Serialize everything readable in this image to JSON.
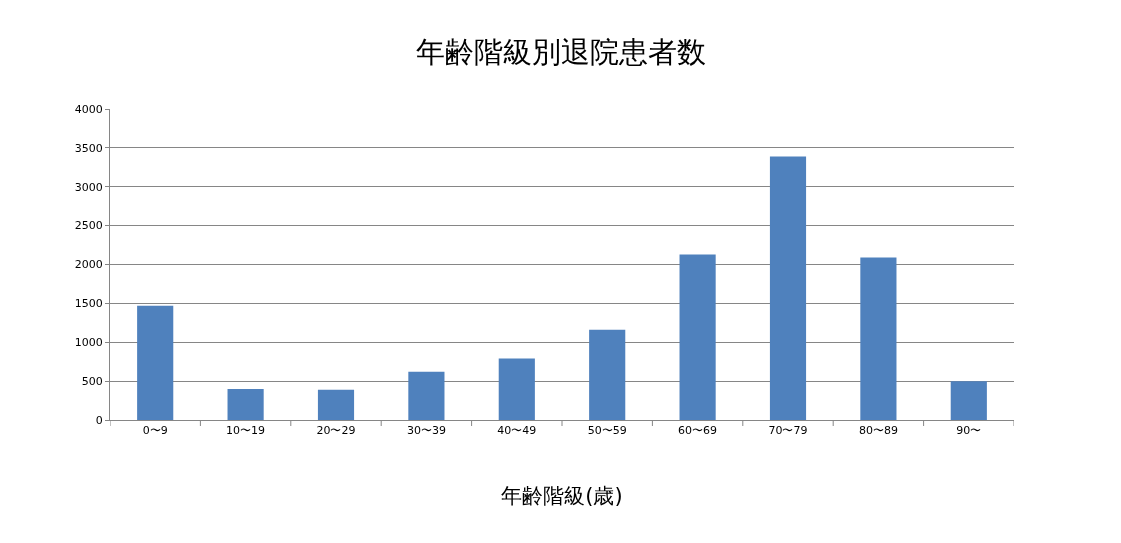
{
  "chart_data": {
    "type": "bar",
    "title": "年齢階級別退院患者数",
    "xlabel": "年齢階級(歳)",
    "categories": [
      "0〜9",
      "10〜19",
      "20〜29",
      "30〜39",
      "40〜49",
      "50〜59",
      "60〜69",
      "70〜79",
      "80〜89",
      "90〜"
    ],
    "values": [
      1470,
      400,
      390,
      620,
      790,
      1160,
      2130,
      3390,
      2090,
      500
    ],
    "color": "#4f81bd",
    "ylim": [
      0,
      4000
    ],
    "yticks": [
      0,
      500,
      1000,
      1500,
      2000,
      2500,
      3000,
      3500,
      4000
    ],
    "grid": "y",
    "legend": false
  }
}
